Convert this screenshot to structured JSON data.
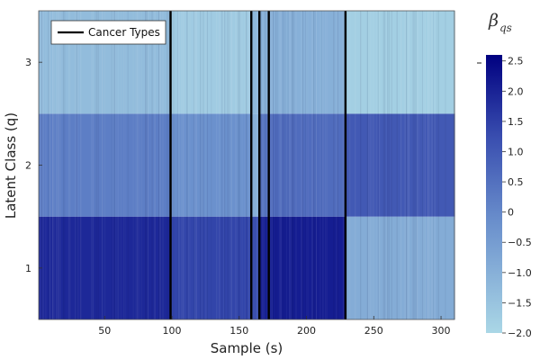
{
  "chart_data": {
    "type": "heatmap",
    "xlabel": "Sample (s)",
    "ylabel": "Latent Class (q)",
    "xlim": [
      1,
      310
    ],
    "x_ticks": [
      50,
      100,
      150,
      200,
      250,
      300
    ],
    "y_categories": [
      "1",
      "2",
      "3"
    ],
    "boundaries": [
      99,
      159,
      165,
      172,
      229
    ],
    "legend": {
      "label": "Cancer Types",
      "placement": "top-left"
    },
    "colorbar": {
      "title_base": "β",
      "title_sub": "qs",
      "min": -2.0,
      "max": 2.6,
      "ticks": [
        "−2.0",
        "−1.5",
        "−1.0",
        "−0.5",
        "0",
        "0.5",
        "1.0",
        "1.5",
        "2.0",
        "2.5"
      ],
      "tick_values": [
        -2.0,
        -1.5,
        -1.0,
        -0.5,
        0,
        0.5,
        1.0,
        1.5,
        2.0,
        2.5
      ],
      "colors": [
        "#aad7e6",
        "#000080"
      ]
    },
    "segments": [
      {
        "x_start": 1,
        "x_end": 99,
        "values": {
          "1": 1.9,
          "2": 0.2,
          "3": -1.3
        }
      },
      {
        "x_start": 99,
        "x_end": 159,
        "values": {
          "1": 1.4,
          "2": -0.2,
          "3": -1.7
        }
      },
      {
        "x_start": 159,
        "x_end": 165,
        "values": {
          "1": 1.2,
          "2": -1.0,
          "3": -1.2
        }
      },
      {
        "x_start": 165,
        "x_end": 172,
        "values": {
          "1": 2.0,
          "2": 0.4,
          "3": -1.0
        }
      },
      {
        "x_start": 172,
        "x_end": 229,
        "values": {
          "1": 2.1,
          "2": 0.6,
          "3": -1.0
        }
      },
      {
        "x_start": 229,
        "x_end": 310,
        "values": {
          "1": -0.9,
          "2": 1.0,
          "3": -1.8
        }
      }
    ]
  }
}
